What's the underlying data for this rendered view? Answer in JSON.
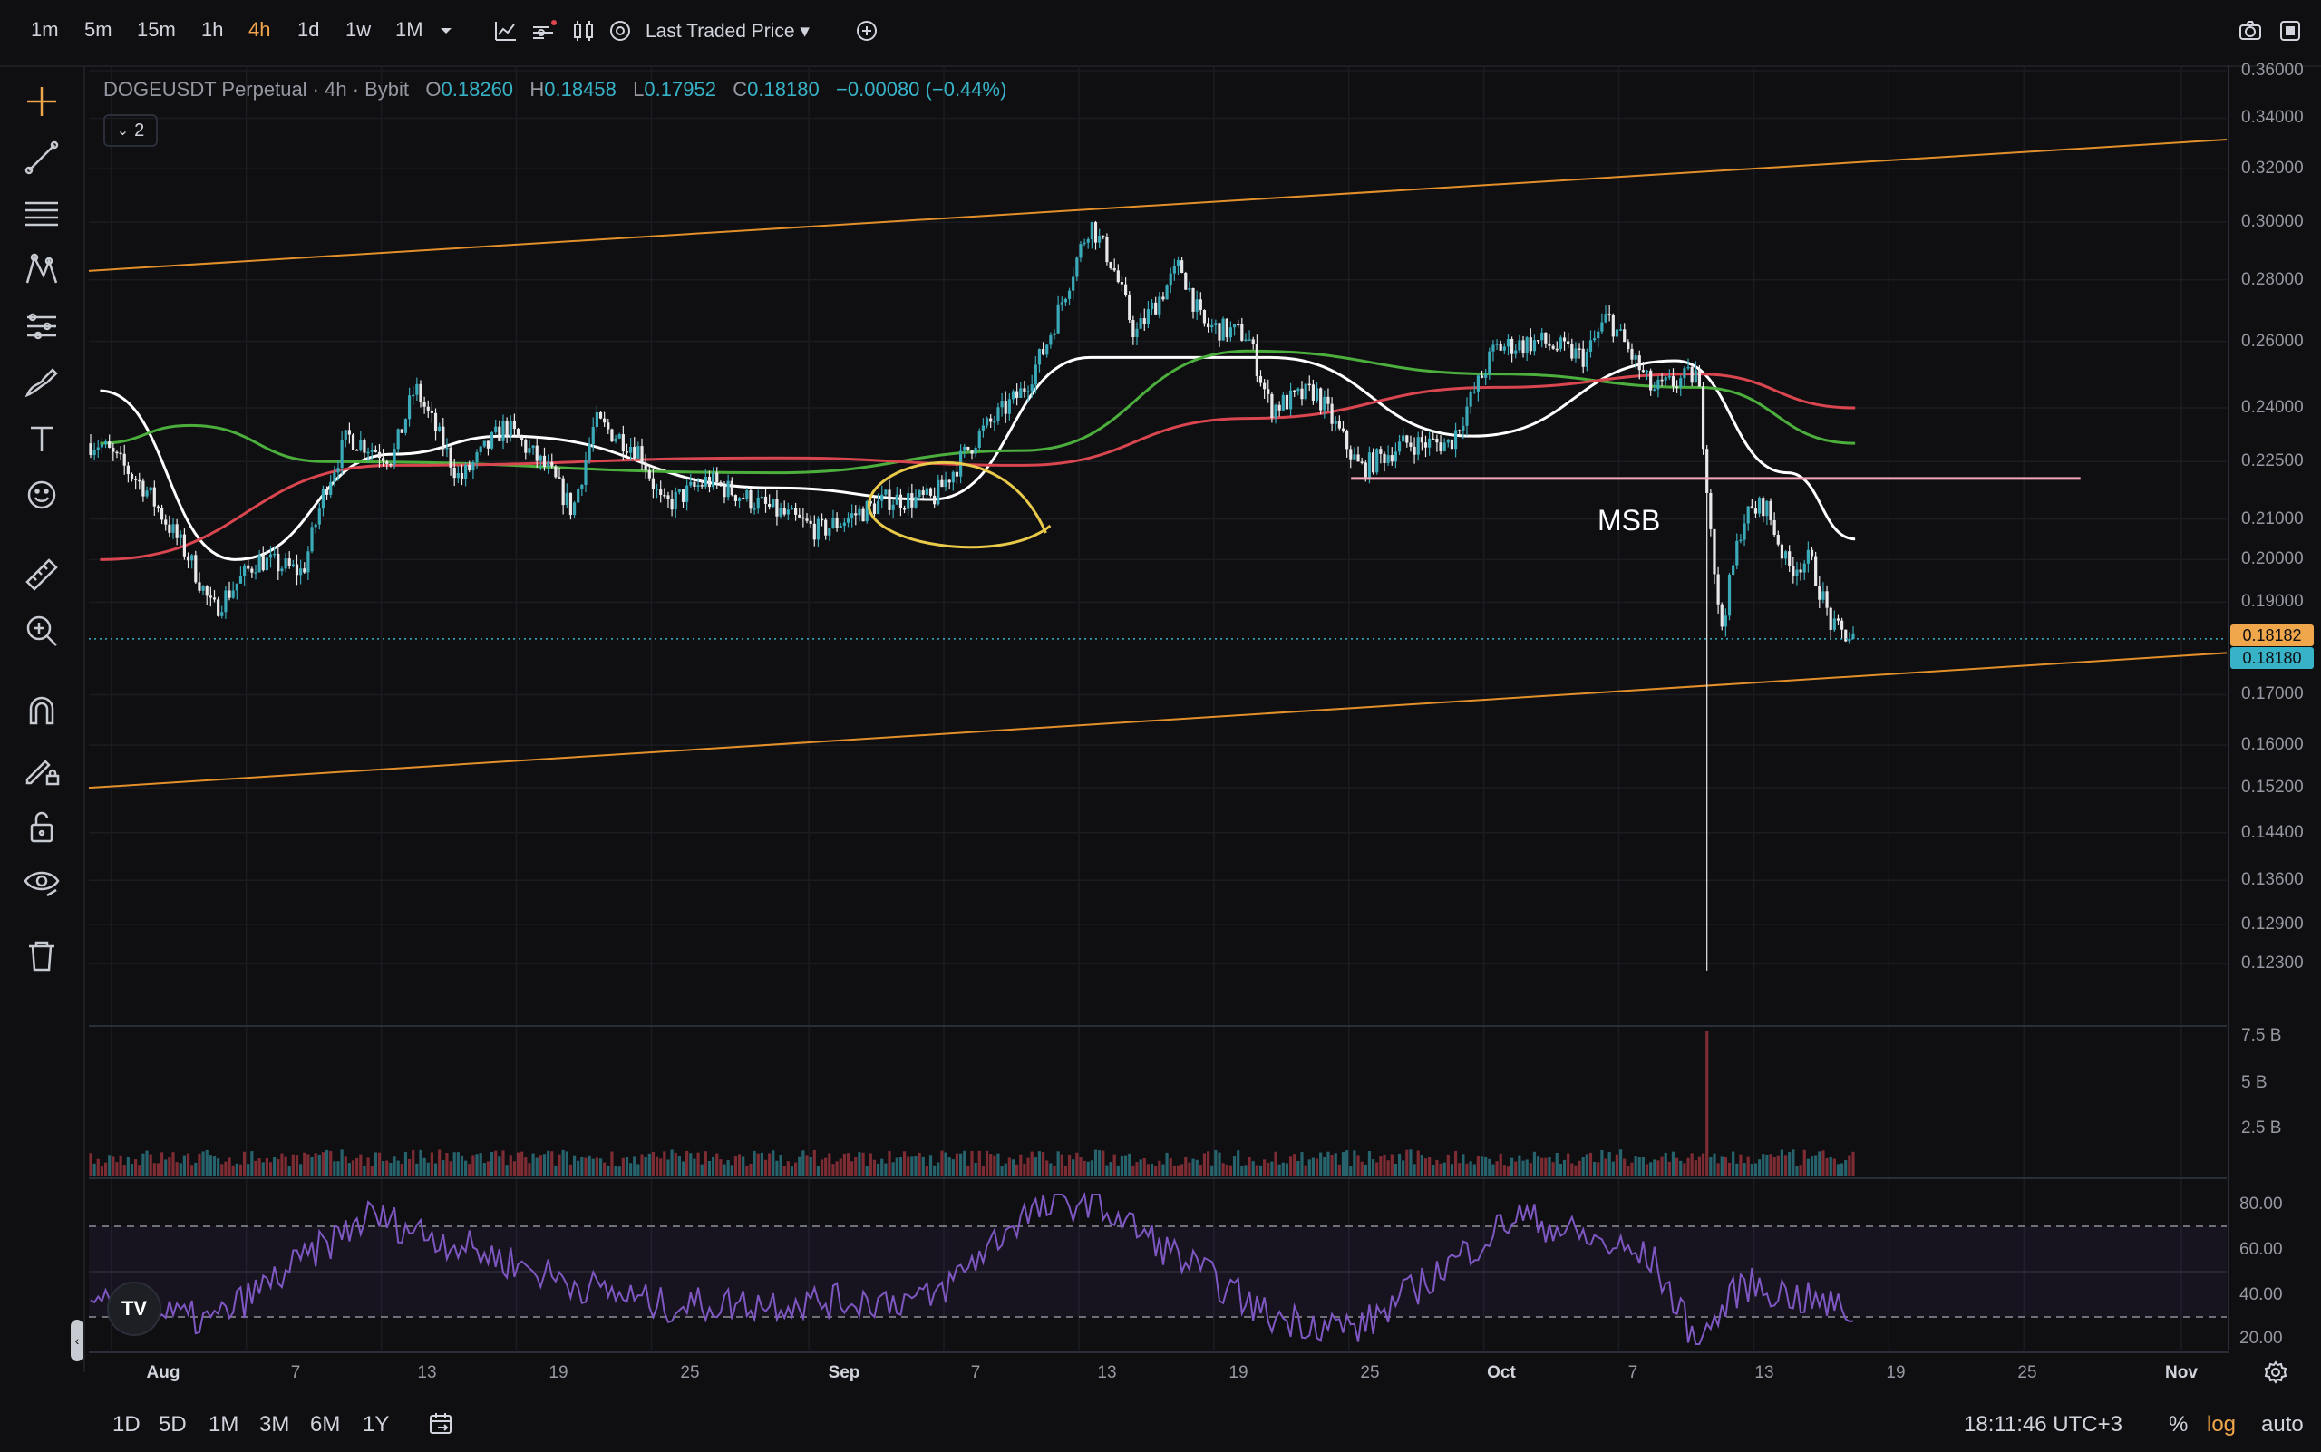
{
  "timeframes": [
    "1m",
    "5m",
    "15m",
    "1h",
    "4h",
    "1d",
    "1w",
    "1M"
  ],
  "active_timeframe": "4h",
  "price_type": "Last Traded Price",
  "legend": {
    "symbol": "DOGEUSDT Perpetual · 4h · Bybit",
    "open_key": "O",
    "open": "0.18260",
    "high_key": "H",
    "high": "0.18458",
    "low_key": "L",
    "low": "0.17952",
    "close_key": "C",
    "close": "0.18180",
    "change": "−0.00080 (−0.44%)",
    "collapsed_count": "2"
  },
  "annotation": "MSB",
  "price_axis": [
    "0.36000",
    "0.34000",
    "0.32000",
    "0.30000",
    "0.28000",
    "0.26000",
    "0.24000",
    "0.22500",
    "0.21000",
    "0.20000",
    "0.19000",
    "0.17000",
    "0.16000",
    "0.15200",
    "0.14400",
    "0.13600",
    "0.12900",
    "0.12300"
  ],
  "price_badges": {
    "last": "0.18182",
    "close": "0.18180"
  },
  "volume_axis": [
    "7.5 B",
    "5 B",
    "2.5 B"
  ],
  "rsi_axis": [
    "80.00",
    "60.00",
    "40.00",
    "20.00"
  ],
  "date_axis": [
    "Aug",
    "7",
    "13",
    "19",
    "25",
    "Sep",
    "7",
    "13",
    "19",
    "25",
    "Oct",
    "7",
    "13",
    "19",
    "25",
    "Nov"
  ],
  "ranges": [
    "1D",
    "5D",
    "1M",
    "3M",
    "6M",
    "1Y"
  ],
  "clock": "18:11:46 UTC+3",
  "bottom_options": {
    "percent": "%",
    "log": "log",
    "auto": "auto"
  },
  "colors": {
    "up": "#3aa9b8",
    "down": "#e8e8ea",
    "channel": "#e3902b",
    "ma_white": "#ffffff",
    "ma_green": "#4caf3d",
    "ma_red": "#d9464f",
    "msb_line": "#f3a6b8",
    "ellipse": "#e8c94a",
    "rsi": "#7e57c2",
    "accent": "#f0a64a"
  },
  "icons": [
    "crosshair-icon",
    "trend-line-icon",
    "fib-icon",
    "pattern-icon",
    "forecast-icon",
    "brush-icon",
    "text-icon",
    "emoji-icon",
    "ruler-icon",
    "zoom-in-icon",
    "magnet-icon",
    "pencil-lock-icon",
    "lock-icon",
    "eye-icon",
    "trash-icon",
    "camera-icon",
    "fullscreen-icon",
    "settings-icon",
    "calendar-icon"
  ],
  "chart_data": {
    "type": "candlestick",
    "symbol": "DOGEUSDT Perpetual",
    "interval": "4h",
    "scale": "log",
    "x_range": [
      "Jul 31",
      "Oct 17"
    ],
    "y_range": [
      0.12,
      0.36
    ],
    "close_path": [
      [
        "Jul 31",
        0.23
      ],
      [
        "Aug 2",
        0.218
      ],
      [
        "Aug 4",
        0.2
      ],
      [
        "Aug 5",
        0.188
      ],
      [
        "Aug 7",
        0.2
      ],
      [
        "Aug 9",
        0.197
      ],
      [
        "Aug 10",
        0.218
      ],
      [
        "Aug 11",
        0.232
      ],
      [
        "Aug 13",
        0.226
      ],
      [
        "Aug 14",
        0.246
      ],
      [
        "Aug 16",
        0.22
      ],
      [
        "Aug 18",
        0.235
      ],
      [
        "Aug 20",
        0.222
      ],
      [
        "Aug 21",
        0.212
      ],
      [
        "Aug 22",
        0.236
      ],
      [
        "Aug 24",
        0.228
      ],
      [
        "Aug 25",
        0.213
      ],
      [
        "Aug 27",
        0.22
      ],
      [
        "Aug 30",
        0.212
      ],
      [
        "Sep 1",
        0.207
      ],
      [
        "Sep 4",
        0.215
      ],
      [
        "Sep 6",
        0.215
      ],
      [
        "Sep 8",
        0.232
      ],
      [
        "Sep 10",
        0.245
      ],
      [
        "Sep 11",
        0.258
      ],
      [
        "Sep 13",
        0.3
      ],
      [
        "Sep 14",
        0.285
      ],
      [
        "Sep 15",
        0.262
      ],
      [
        "Sep 17",
        0.285
      ],
      [
        "Sep 18",
        0.265
      ],
      [
        "Sep 20",
        0.262
      ],
      [
        "Sep 21",
        0.24
      ],
      [
        "Sep 23",
        0.245
      ],
      [
        "Sep 25",
        0.223
      ],
      [
        "Sep 27",
        0.23
      ],
      [
        "Sep 29",
        0.23
      ],
      [
        "Oct 1",
        0.258
      ],
      [
        "Oct 3",
        0.26
      ],
      [
        "Oct 5",
        0.255
      ],
      [
        "Oct 6",
        0.268
      ],
      [
        "Oct 8",
        0.245
      ],
      [
        "Oct 10",
        0.25
      ],
      [
        "Oct 10 (wick)",
        0.122
      ],
      [
        "Oct 11",
        0.183
      ],
      [
        "Oct 12",
        0.21
      ],
      [
        "Oct 13",
        0.214
      ],
      [
        "Oct 14",
        0.198
      ],
      [
        "Oct 15",
        0.2
      ],
      [
        "Oct 16",
        0.184
      ],
      [
        "Oct 17",
        0.1818
      ]
    ],
    "moving_averages": [
      {
        "color": "white",
        "points": [
          [
            "Jul 31",
            0.245
          ],
          [
            "Aug 6",
            0.2
          ],
          [
            "Aug 13",
            0.227
          ],
          [
            "Aug 18",
            0.232
          ],
          [
            "Aug 30",
            0.218
          ],
          [
            "Sep 6",
            0.215
          ],
          [
            "Sep 13",
            0.255
          ],
          [
            "Sep 21",
            0.255
          ],
          [
            "Sep 30",
            0.232
          ],
          [
            "Oct 9",
            0.254
          ],
          [
            "Oct 14",
            0.222
          ],
          [
            "Oct 17",
            0.205
          ]
        ]
      },
      {
        "color": "green",
        "points": [
          [
            "Jul 31",
            0.23
          ],
          [
            "Aug 4",
            0.235
          ],
          [
            "Aug 10",
            0.225
          ],
          [
            "Aug 30",
            0.222
          ],
          [
            "Sep 10",
            0.228
          ],
          [
            "Sep 20",
            0.257
          ],
          [
            "Oct 1",
            0.25
          ],
          [
            "Oct 10",
            0.246
          ],
          [
            "Oct 17",
            0.23
          ]
        ]
      },
      {
        "color": "red",
        "points": [
          [
            "Jul 31",
            0.2
          ],
          [
            "Aug 13",
            0.224
          ],
          [
            "Aug 30",
            0.226
          ],
          [
            "Sep 10",
            0.224
          ],
          [
            "Sep 20",
            0.237
          ],
          [
            "Oct 1",
            0.246
          ],
          [
            "Oct 10",
            0.25
          ],
          [
            "Oct 17",
            0.24
          ]
        ]
      }
    ],
    "channel": {
      "upper": [
        [
          "Jul 31",
          0.283
        ],
        [
          "Oct 31",
          0.33
        ]
      ],
      "lower": [
        [
          "Jul 31",
          0.152
        ],
        [
          "Oct 31",
          0.178
        ]
      ]
    },
    "msb_level": 0.2205,
    "rsi": {
      "levels": [
        30,
        70
      ],
      "points": [
        [
          "Jul 31",
          35
        ],
        [
          "Aug 5",
          28
        ],
        [
          "Aug 12",
          75
        ],
        [
          "Aug 21",
          45
        ],
        [
          "Aug 25",
          35
        ],
        [
          "Sep 6",
          38
        ],
        [
          "Sep 10",
          75
        ],
        [
          "Sep 13",
          82
        ],
        [
          "Sep 21",
          30
        ],
        [
          "Sep 25",
          25
        ],
        [
          "Oct 2",
          75
        ],
        [
          "Oct 8",
          55
        ],
        [
          "Oct 10",
          18
        ],
        [
          "Oct 12",
          45
        ],
        [
          "Oct 17",
          32
        ]
      ]
    },
    "volume": {
      "peak": [
        "Oct 10",
        7.5
      ],
      "typical": 1.0,
      "unit": "B"
    }
  }
}
